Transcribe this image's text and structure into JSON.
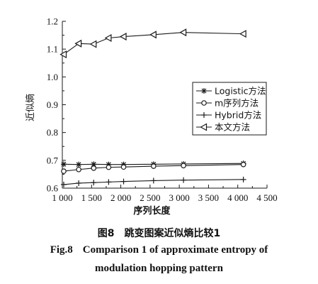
{
  "chart_data": {
    "type": "line",
    "xlabel": "序列长度",
    "ylabel": "近似熵",
    "xlim": [
      1000,
      4500
    ],
    "ylim": [
      0.6,
      1.2
    ],
    "xticks": [
      "1 000",
      "1 500",
      "2 000",
      "2 500",
      "3 000",
      "3 500",
      "4 000",
      "4 500"
    ],
    "xtick_values": [
      1000,
      1500,
      2000,
      2500,
      3000,
      3500,
      4000,
      4500
    ],
    "yticks": [
      "0.6",
      "0.7",
      "0.8",
      "0.9",
      "1.0",
      "1.1",
      "1.2"
    ],
    "ytick_values": [
      0.6,
      0.7,
      0.8,
      0.9,
      1.0,
      1.1,
      1.2
    ],
    "minor_ticks": true,
    "grid": false,
    "legend_position": "center-right",
    "series": [
      {
        "name": "Logistic方法",
        "marker": "star",
        "x": [
          1024,
          1280,
          1536,
          1792,
          2048,
          2560,
          3072,
          4096
        ],
        "y": [
          0.686,
          0.685,
          0.686,
          0.685,
          0.685,
          0.686,
          0.687,
          0.689
        ]
      },
      {
        "name": "m序列方法",
        "marker": "circle",
        "x": [
          1024,
          1280,
          1536,
          1792,
          2048,
          2560,
          3072,
          4096
        ],
        "y": [
          0.661,
          0.667,
          0.672,
          0.675,
          0.676,
          0.679,
          0.681,
          0.685
        ]
      },
      {
        "name": "Hybrid方法",
        "marker": "plus",
        "x": [
          1024,
          1280,
          1536,
          1792,
          2048,
          2560,
          3072,
          4096
        ],
        "y": [
          0.613,
          0.618,
          0.62,
          0.622,
          0.624,
          0.627,
          0.629,
          0.631
        ]
      },
      {
        "name": "本文方法",
        "marker": "triangle-left",
        "x": [
          1024,
          1280,
          1536,
          1792,
          2048,
          2560,
          3072,
          4096
        ],
        "y": [
          1.081,
          1.12,
          1.118,
          1.14,
          1.145,
          1.152,
          1.16,
          1.155
        ]
      }
    ]
  },
  "caption": {
    "cn_num": "图8",
    "cn_text": "跳变图案近似熵比较1",
    "en_num": "Fig.8",
    "en_text_line1": "Comparison 1 of approximate entropy of",
    "en_text_line2": "modulation hopping pattern"
  }
}
